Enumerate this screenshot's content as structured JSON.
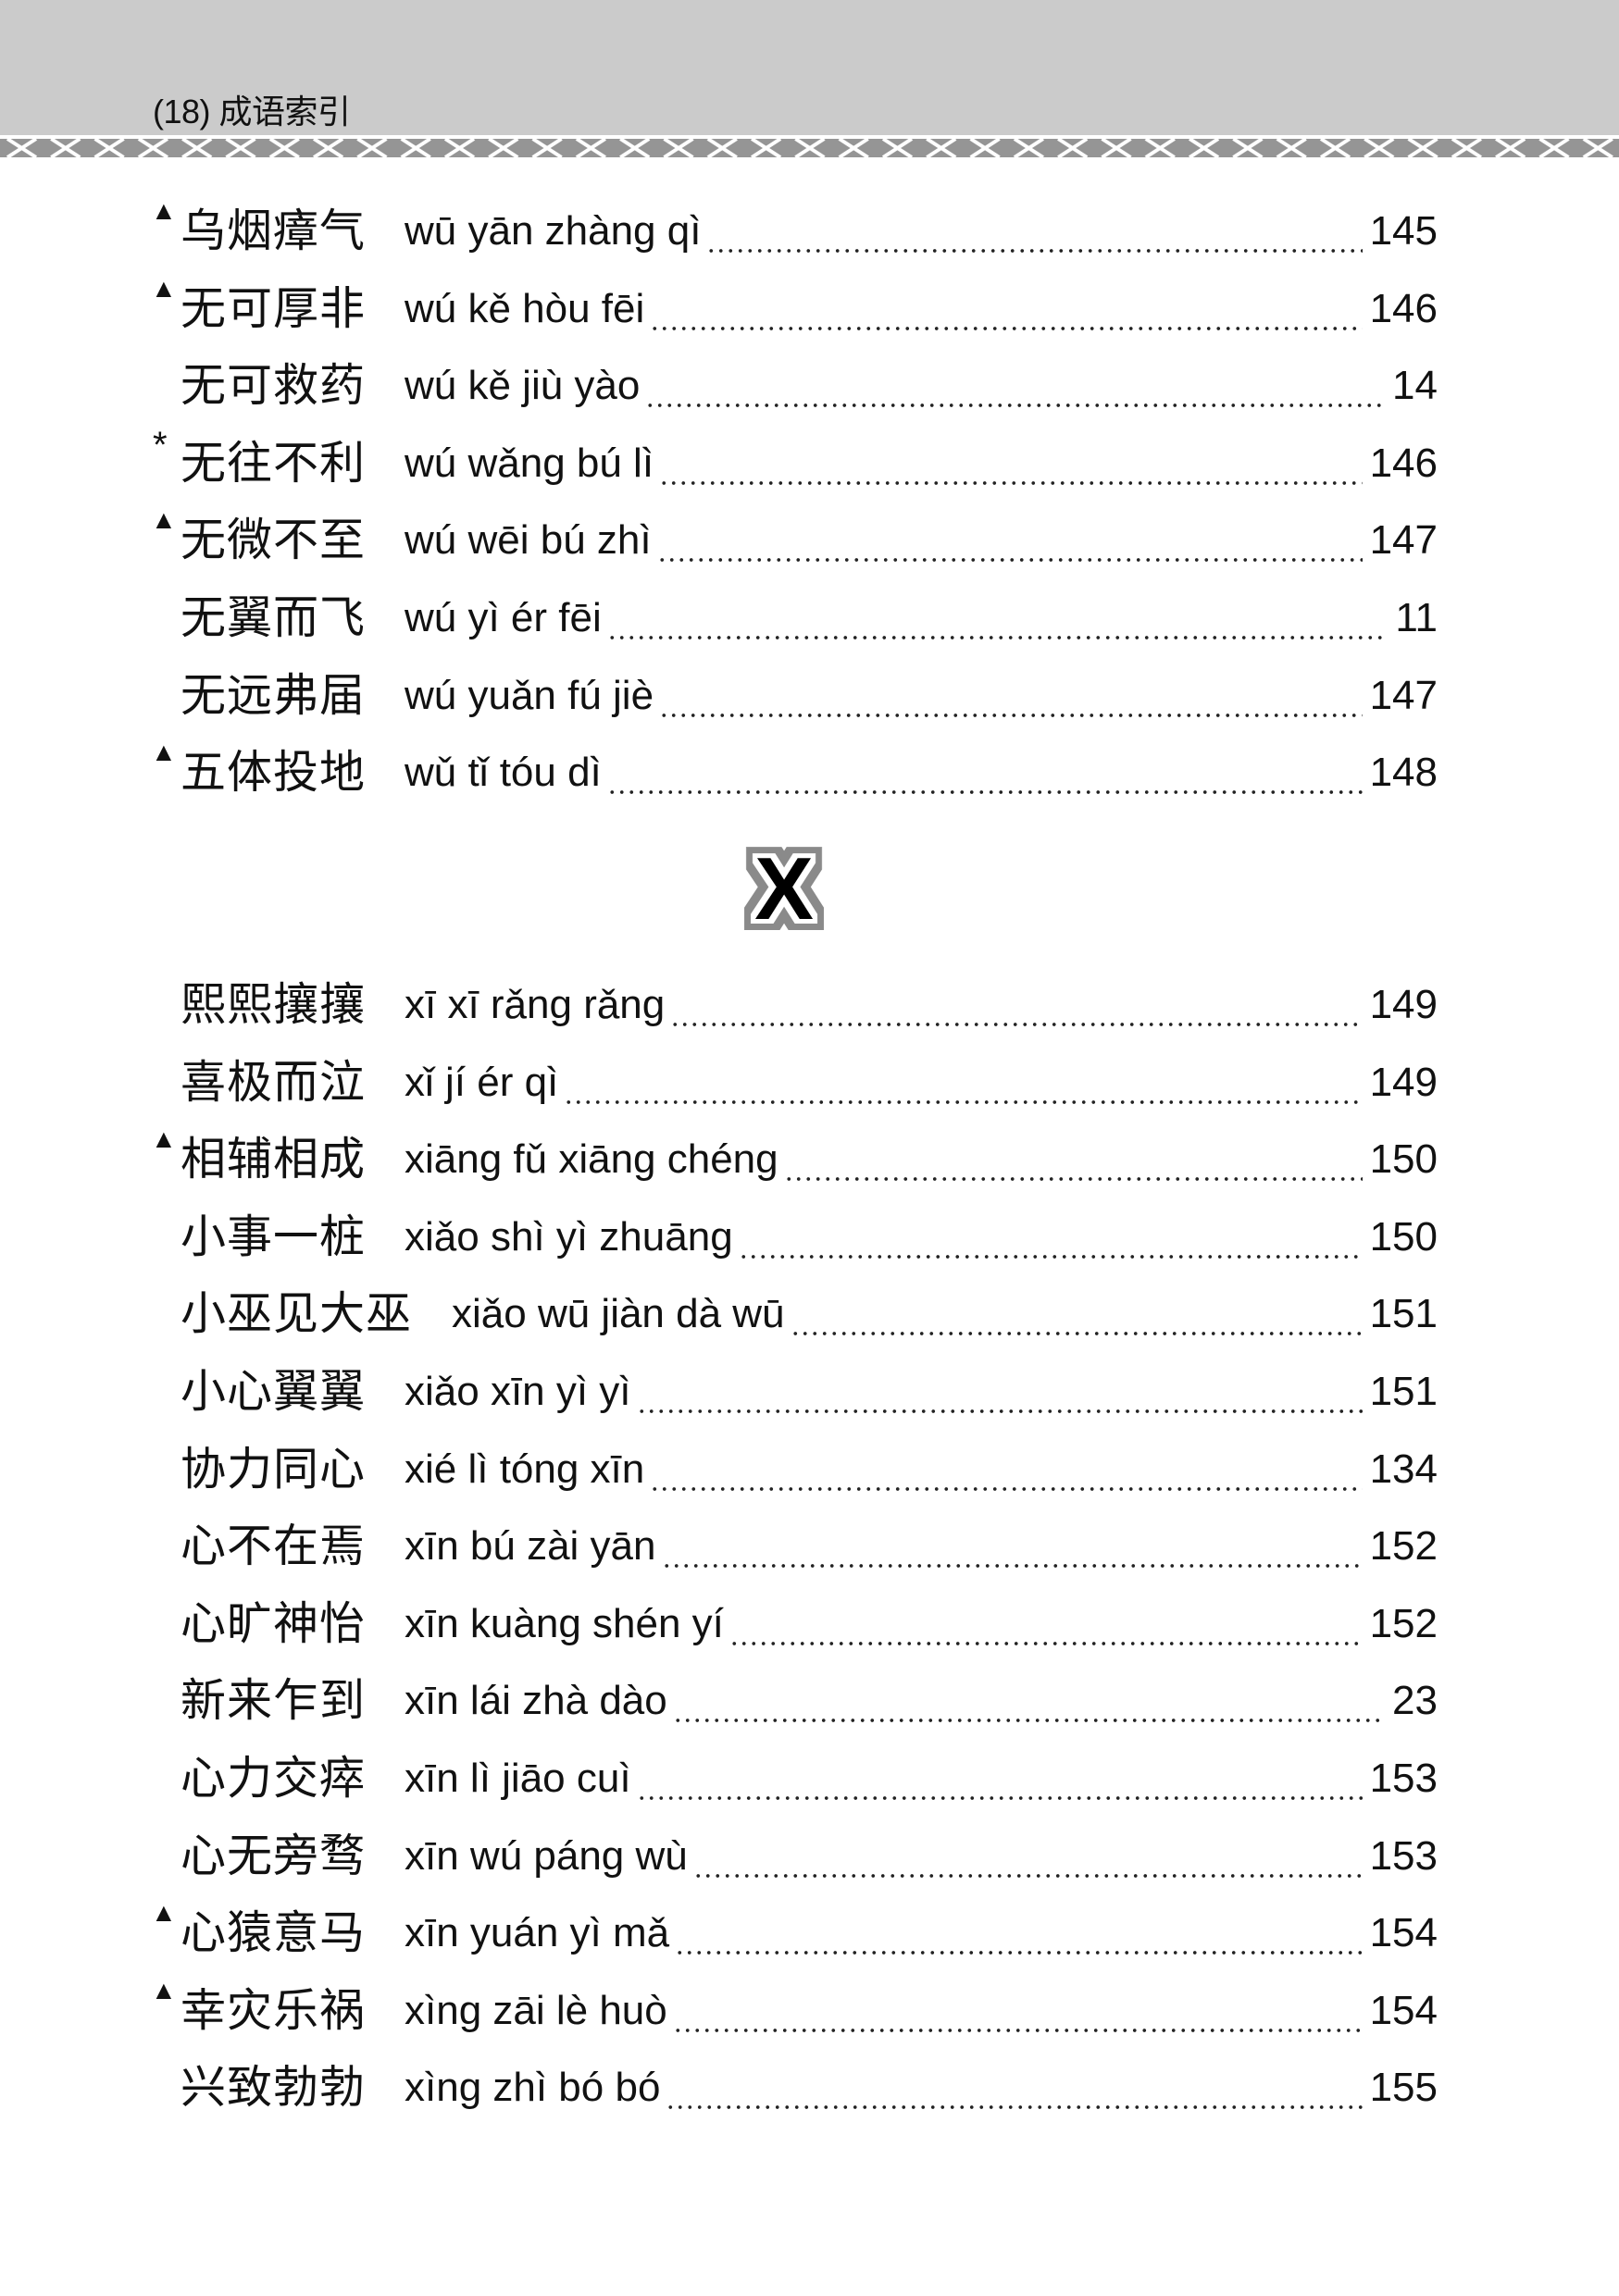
{
  "header": {
    "title": "(18) 成语索引"
  },
  "colors": {
    "header_band": "#cbcbcb",
    "pattern": "#959595",
    "text": "#111111"
  },
  "section_letter": "X",
  "entries_w": [
    {
      "marker": "▲",
      "idiom": "乌烟瘴气",
      "pinyin": "wū yān zhàng qì",
      "page": "145"
    },
    {
      "marker": "▲",
      "idiom": "无可厚非",
      "pinyin": "wú kě hòu fēi",
      "page": "146"
    },
    {
      "marker": "",
      "idiom": "无可救药",
      "pinyin": "wú kě jiù yào",
      "page": "14"
    },
    {
      "marker": "*",
      "idiom": "无往不利",
      "pinyin": "wú wǎng bú lì",
      "page": "146"
    },
    {
      "marker": "▲",
      "idiom": "无微不至",
      "pinyin": "wú wēi bú zhì",
      "page": "147"
    },
    {
      "marker": "",
      "idiom": "无翼而飞",
      "pinyin": "wú yì ér fēi",
      "page": "11"
    },
    {
      "marker": "",
      "idiom": "无远弗届",
      "pinyin": "wú yuǎn fú jiè",
      "page": "147"
    },
    {
      "marker": "▲",
      "idiom": "五体投地",
      "pinyin": "wǔ tǐ tóu dì",
      "page": "148"
    }
  ],
  "entries_x": [
    {
      "marker": "",
      "idiom": "熙熙攘攘",
      "pinyin": "xī xī rǎng rǎng",
      "page": "149"
    },
    {
      "marker": "",
      "idiom": "喜极而泣",
      "pinyin": "xǐ jí ér qì",
      "page": "149"
    },
    {
      "marker": "▲",
      "idiom": "相辅相成",
      "pinyin": "xiāng fǔ xiāng chéng",
      "page": "150"
    },
    {
      "marker": "",
      "idiom": "小事一桩",
      "pinyin": "xiǎo shì yì zhuāng",
      "page": "150"
    },
    {
      "marker": "",
      "idiom": "小巫见大巫",
      "pinyin": "xiǎo wū jiàn dà wū",
      "page": "151"
    },
    {
      "marker": "",
      "idiom": "小心翼翼",
      "pinyin": "xiǎo xīn yì yì",
      "page": "151"
    },
    {
      "marker": "",
      "idiom": "协力同心",
      "pinyin": "xié lì tóng xīn",
      "page": "134"
    },
    {
      "marker": "",
      "idiom": "心不在焉",
      "pinyin": "xīn bú zài yān",
      "page": "152"
    },
    {
      "marker": "",
      "idiom": "心旷神怡",
      "pinyin": "xīn kuàng shén yí",
      "page": "152"
    },
    {
      "marker": "",
      "idiom": "新来乍到",
      "pinyin": "xīn lái zhà dào",
      "page": "23"
    },
    {
      "marker": "",
      "idiom": "心力交瘁",
      "pinyin": "xīn lì jiāo cuì",
      "page": "153"
    },
    {
      "marker": "",
      "idiom": "心无旁骛",
      "pinyin": "xīn wú páng wù",
      "page": "153"
    },
    {
      "marker": "▲",
      "idiom": "心猿意马",
      "pinyin": "xīn yuán yì mǎ",
      "page": "154"
    },
    {
      "marker": "▲",
      "idiom": "幸灾乐祸",
      "pinyin": "xìng zāi lè huò",
      "page": "154"
    },
    {
      "marker": "",
      "idiom": "兴致勃勃",
      "pinyin": "xìng zhì bó bó",
      "page": "155"
    }
  ]
}
